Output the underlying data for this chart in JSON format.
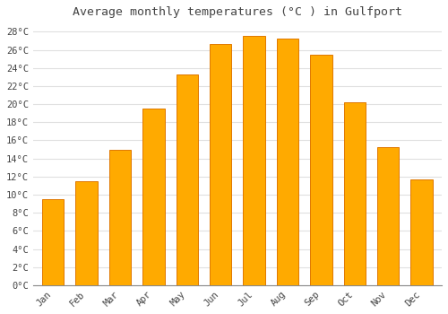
{
  "title": "Average monthly temperatures (°C ) in Gulfport",
  "months": [
    "Jan",
    "Feb",
    "Mar",
    "Apr",
    "May",
    "Jun",
    "Jul",
    "Aug",
    "Sep",
    "Oct",
    "Nov",
    "Dec"
  ],
  "values": [
    9.5,
    11.5,
    15.0,
    19.5,
    23.3,
    26.6,
    27.5,
    27.2,
    25.5,
    20.2,
    15.3,
    11.7
  ],
  "bar_color": "#FFAA00",
  "bar_edge_color": "#E07800",
  "background_color": "#FFFFFF",
  "grid_color": "#E0E0E0",
  "text_color": "#444444",
  "ylim": [
    0,
    29
  ],
  "ytick_step": 2,
  "title_fontsize": 9.5,
  "tick_fontsize": 7.5
}
